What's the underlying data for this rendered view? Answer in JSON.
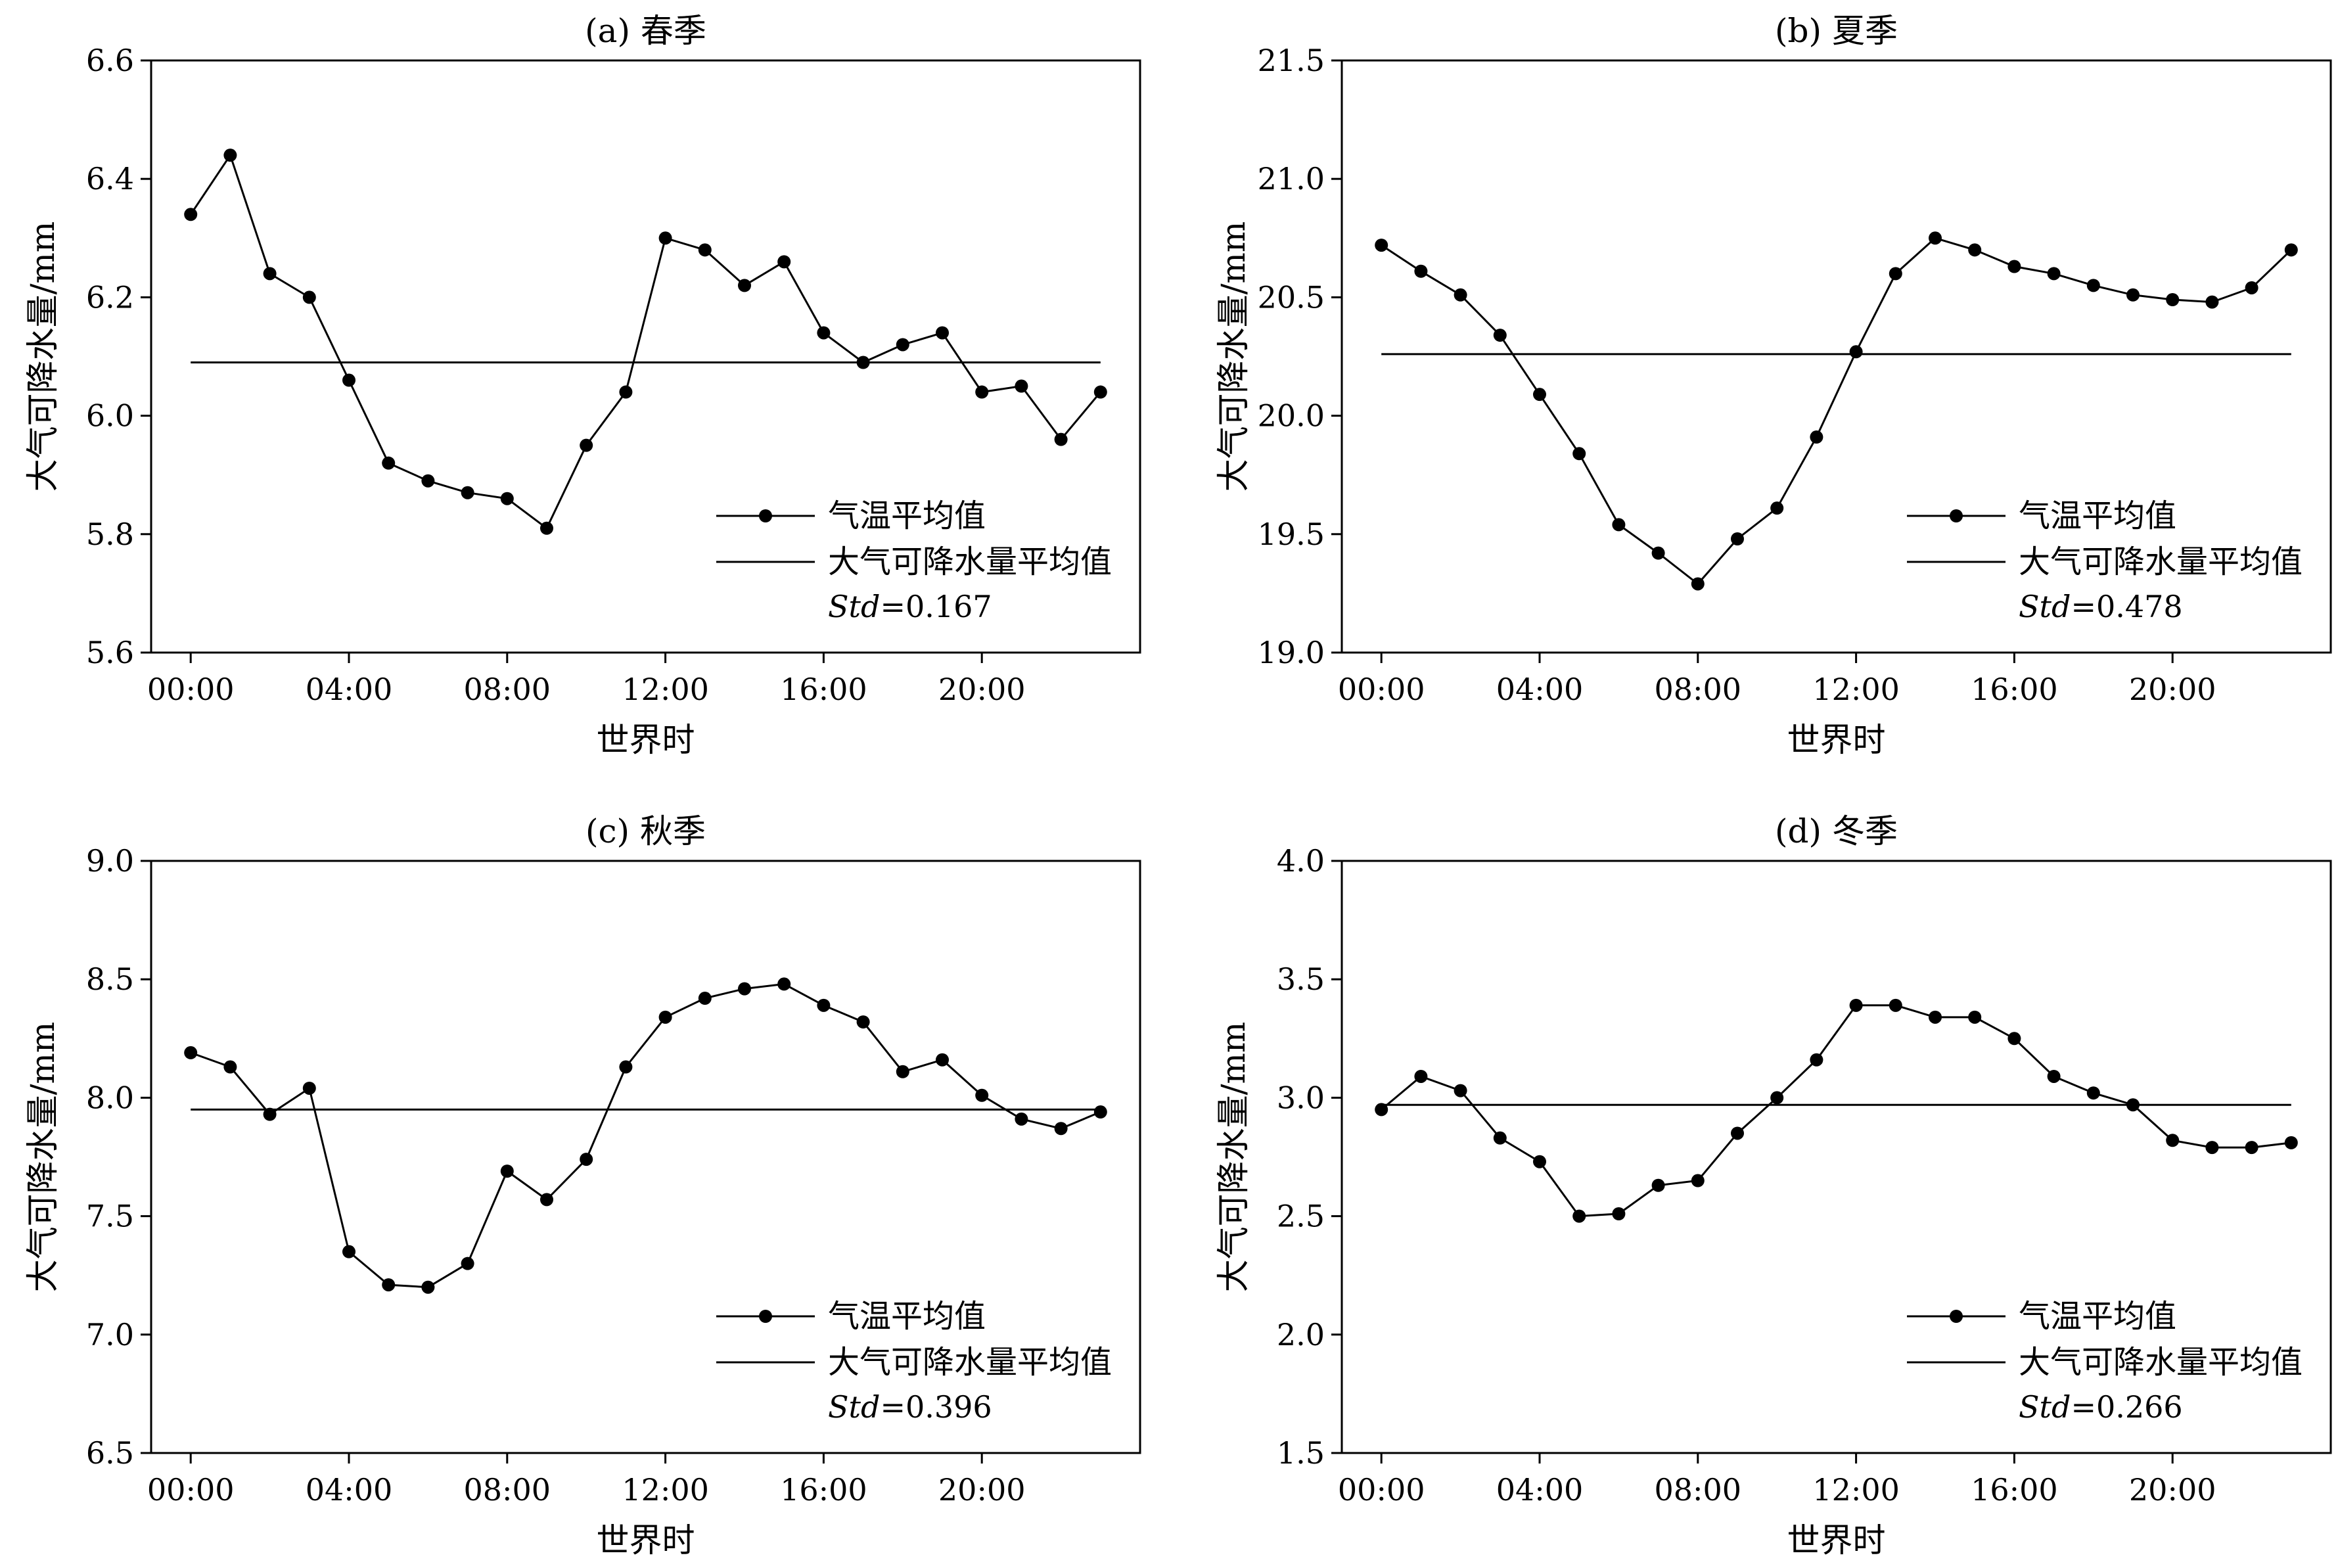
{
  "figure": {
    "xlabel": "世界时",
    "ylabel": "大气可降水量/mm",
    "legend": {
      "series_label": "气温平均值",
      "mean_label": "大气可降水量平均值"
    }
  },
  "chart_data": [
    {
      "type": "line",
      "title": "(a) 春季",
      "xlabel": "世界时",
      "ylabel": "大气可降水量/mm",
      "x": [
        0,
        1,
        2,
        3,
        4,
        5,
        6,
        7,
        8,
        9,
        10,
        11,
        12,
        13,
        14,
        15,
        16,
        17,
        18,
        19,
        20,
        21,
        22,
        23
      ],
      "xticks": [
        0,
        4,
        8,
        12,
        16,
        20
      ],
      "xtick_labels": [
        "00:00",
        "04:00",
        "08:00",
        "12:00",
        "16:00",
        "20:00"
      ],
      "xlim": [
        -1,
        24
      ],
      "ylim": [
        5.6,
        6.6
      ],
      "yticks": [
        5.6,
        5.8,
        6.0,
        6.2,
        6.4,
        6.6
      ],
      "ytick_labels": [
        "5.6",
        "5.8",
        "6.0",
        "6.2",
        "6.4",
        "6.6"
      ],
      "series": [
        {
          "name": "气温平均值",
          "values": [
            6.34,
            6.44,
            6.24,
            6.2,
            6.06,
            5.92,
            5.89,
            5.87,
            5.86,
            5.81,
            5.95,
            6.04,
            6.3,
            6.28,
            6.22,
            6.26,
            6.14,
            6.09,
            6.12,
            6.14,
            6.04,
            6.05,
            5.96,
            6.04
          ]
        }
      ],
      "mean": {
        "name": "大气可降水量平均值",
        "value": 6.09
      },
      "std_label": "Std",
      "std_text": "=0.167"
    },
    {
      "type": "line",
      "title": "(b) 夏季",
      "xlabel": "世界时",
      "ylabel": "大气可降水量/mm",
      "x": [
        0,
        1,
        2,
        3,
        4,
        5,
        6,
        7,
        8,
        9,
        10,
        11,
        12,
        13,
        14,
        15,
        16,
        17,
        18,
        19,
        20,
        21,
        22,
        23
      ],
      "xticks": [
        0,
        4,
        8,
        12,
        16,
        20
      ],
      "xtick_labels": [
        "00:00",
        "04:00",
        "08:00",
        "12:00",
        "16:00",
        "20:00"
      ],
      "xlim": [
        -1,
        24
      ],
      "ylim": [
        19.0,
        21.5
      ],
      "yticks": [
        19.0,
        19.5,
        20.0,
        20.5,
        21.0,
        21.5
      ],
      "ytick_labels": [
        "19.0",
        "19.5",
        "20.0",
        "20.5",
        "21.0",
        "21.5"
      ],
      "series": [
        {
          "name": "气温平均值",
          "values": [
            20.72,
            20.61,
            20.51,
            20.34,
            20.09,
            19.84,
            19.54,
            19.42,
            19.29,
            19.48,
            19.61,
            19.91,
            20.27,
            20.6,
            20.75,
            20.7,
            20.63,
            20.6,
            20.55,
            20.51,
            20.49,
            20.48,
            20.54,
            20.7
          ]
        }
      ],
      "mean": {
        "name": "大气可降水量平均值",
        "value": 20.26
      },
      "std_label": "Std",
      "std_text": "=0.478"
    },
    {
      "type": "line",
      "title": "(c) 秋季",
      "xlabel": "世界时",
      "ylabel": "大气可降水量/mm",
      "x": [
        0,
        1,
        2,
        3,
        4,
        5,
        6,
        7,
        8,
        9,
        10,
        11,
        12,
        13,
        14,
        15,
        16,
        17,
        18,
        19,
        20,
        21,
        22,
        23
      ],
      "xticks": [
        0,
        4,
        8,
        12,
        16,
        20
      ],
      "xtick_labels": [
        "00:00",
        "04:00",
        "08:00",
        "12:00",
        "16:00",
        "20:00"
      ],
      "xlim": [
        -1,
        24
      ],
      "ylim": [
        6.5,
        9.0
      ],
      "yticks": [
        6.5,
        7.0,
        7.5,
        8.0,
        8.5,
        9.0
      ],
      "ytick_labels": [
        "6.5",
        "7.0",
        "7.5",
        "8.0",
        "8.5",
        "9.0"
      ],
      "series": [
        {
          "name": "气温平均值",
          "values": [
            8.19,
            8.13,
            7.93,
            8.04,
            7.35,
            7.21,
            7.2,
            7.3,
            7.69,
            7.57,
            7.74,
            8.13,
            8.34,
            8.42,
            8.46,
            8.48,
            8.39,
            8.32,
            8.11,
            8.16,
            8.01,
            7.91,
            7.87,
            7.94
          ]
        }
      ],
      "mean": {
        "name": "大气可降水量平均值",
        "value": 7.95
      },
      "std_label": "Std",
      "std_text": "=0.396"
    },
    {
      "type": "line",
      "title": "(d) 冬季",
      "xlabel": "世界时",
      "ylabel": "大气可降水量/mm",
      "x": [
        0,
        1,
        2,
        3,
        4,
        5,
        6,
        7,
        8,
        9,
        10,
        11,
        12,
        13,
        14,
        15,
        16,
        17,
        18,
        19,
        20,
        21,
        22,
        23
      ],
      "xticks": [
        0,
        4,
        8,
        12,
        16,
        20
      ],
      "xtick_labels": [
        "00:00",
        "04:00",
        "08:00",
        "12:00",
        "16:00",
        "20:00"
      ],
      "xlim": [
        -1,
        24
      ],
      "ylim": [
        1.5,
        4.0
      ],
      "yticks": [
        1.5,
        2.0,
        2.5,
        3.0,
        3.5,
        4.0
      ],
      "ytick_labels": [
        "1.5",
        "2.0",
        "2.5",
        "3.0",
        "3.5",
        "4.0"
      ],
      "series": [
        {
          "name": "气温平均值",
          "values": [
            2.95,
            3.09,
            3.03,
            2.83,
            2.73,
            2.5,
            2.51,
            2.63,
            2.65,
            2.85,
            3.0,
            3.16,
            3.39,
            3.39,
            3.34,
            3.34,
            3.25,
            3.09,
            3.02,
            2.97,
            2.82,
            2.79,
            2.79,
            2.81
          ]
        }
      ],
      "mean": {
        "name": "大气可降水量平均值",
        "value": 2.97
      },
      "std_label": "Std",
      "std_text": "=0.266"
    }
  ]
}
